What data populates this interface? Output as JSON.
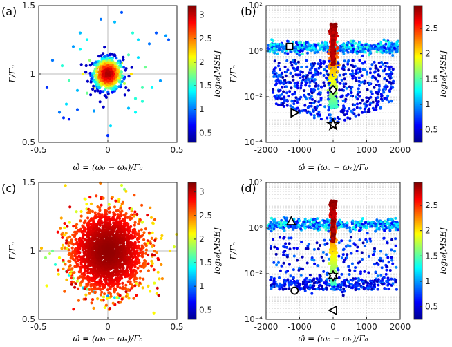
{
  "colors": {
    "axis": "#262626",
    "grid": "#c8c8c8",
    "marker_stroke": "#000000",
    "marker_fill": "#ffffff"
  },
  "chart_data": [
    {
      "panel": "(a)",
      "type": "scatter",
      "yscale": "linear",
      "xlabel": "ω̂ = (ω₀ − ωₙ)/Γ₀",
      "ylabel": "Γ/Γ₀",
      "xlim": [
        -0.5,
        0.5
      ],
      "ylim": [
        0.5,
        1.5
      ],
      "xticks": [
        -0.5,
        0,
        0.5
      ],
      "xtick_labels": [
        "-0.5",
        "0",
        "0.5"
      ],
      "yticks": [
        0.5,
        1,
        1.5
      ],
      "ytick_labels": [
        "0.5",
        "1",
        "1.5"
      ],
      "refline_x": 0,
      "refline_y": 1,
      "colorbar": {
        "label": "log₁₀[MSE]",
        "range": [
          0.3,
          3.2
        ],
        "ticks": [
          0.5,
          1,
          1.5,
          2,
          2.5,
          3
        ],
        "tick_labels": [
          "0.5",
          "1",
          "1.5",
          "2",
          "2.5",
          "3"
        ]
      },
      "points": [
        [
          0,
          1.0,
          3.1
        ],
        [
          0.02,
          1.02,
          3.0
        ],
        [
          -0.03,
          0.98,
          2.9
        ],
        [
          0.05,
          1.05,
          2.6
        ],
        [
          -0.06,
          0.94,
          2.5
        ],
        [
          0.08,
          0.97,
          2.3
        ],
        [
          -0.08,
          1.04,
          2.4
        ],
        [
          0.1,
          1.08,
          2.0
        ],
        [
          -0.1,
          0.9,
          2.1
        ],
        [
          0.12,
          0.93,
          1.9
        ],
        [
          -0.13,
          1.1,
          1.8
        ],
        [
          0.15,
          1.14,
          1.6
        ],
        [
          -0.15,
          0.86,
          1.7
        ],
        [
          0.17,
          1.0,
          2.2
        ],
        [
          -0.18,
          1.0,
          2.1
        ],
        [
          0.2,
          0.82,
          1.5
        ],
        [
          -0.2,
          1.18,
          1.4
        ],
        [
          0.22,
          1.12,
          1.3
        ],
        [
          -0.22,
          0.88,
          1.2
        ],
        [
          0.25,
          0.8,
          1.5
        ],
        [
          -0.25,
          1.2,
          1.1
        ],
        [
          0.27,
          1.05,
          1.7
        ],
        [
          -0.28,
          0.95,
          1.6
        ],
        [
          0.3,
          1.22,
          1.0
        ],
        [
          -0.3,
          0.78,
          1.3
        ],
        [
          0.32,
          0.9,
          1.4
        ],
        [
          -0.33,
          1.06,
          1.5
        ],
        [
          0.35,
          1.3,
          0.9
        ],
        [
          -0.35,
          0.72,
          1.0
        ],
        [
          0.38,
          0.95,
          1.1
        ],
        [
          -0.4,
          1.1,
          1.0
        ],
        [
          0.42,
          1.28,
          1.1
        ],
        [
          0.44,
          1.25,
          0.9
        ],
        [
          -0.44,
          0.9,
          0.8
        ],
        [
          -0.32,
          0.68,
          0.8
        ],
        [
          -0.28,
          0.67,
          0.7
        ],
        [
          -0.22,
          0.74,
          0.9
        ],
        [
          -0.1,
          0.73,
          1.1
        ],
        [
          0.05,
          1.38,
          1.2
        ],
        [
          -0.05,
          1.4,
          1.0
        ],
        [
          0.1,
          1.45,
          0.9
        ],
        [
          0.0,
          0.55,
          0.8
        ],
        [
          0.02,
          0.62,
          1.3
        ],
        [
          0.15,
          0.75,
          1.2
        ],
        [
          0.2,
          0.72,
          1.4
        ],
        [
          0.25,
          0.9,
          1.6
        ],
        [
          0.22,
          1.25,
          1.3
        ],
        [
          -0.15,
          1.25,
          1.4
        ],
        [
          -0.2,
          1.3,
          1.2
        ],
        [
          0.18,
          1.3,
          1.5
        ]
      ]
    },
    {
      "panel": "(b)",
      "type": "scatter",
      "yscale": "log",
      "xlabel": "ω̂ = (ω₀ − ωₙ)/Γ₀",
      "ylabel": "Γ/Γ₀",
      "xlim": [
        -2000,
        2000
      ],
      "ylim": [
        0.0001,
        100
      ],
      "xticks": [
        -2000,
        -1000,
        0,
        1000,
        2000
      ],
      "xtick_labels": [
        "-2000",
        "-1000",
        "0",
        "1000",
        "2000"
      ],
      "yticks": [
        0.0001,
        0.01,
        1,
        100
      ],
      "ytick_labels": [
        "10⁻⁴",
        "10⁻²",
        "10⁰",
        "10²"
      ],
      "grid": true,
      "colorbar": {
        "label": "log₁₀[MSE]",
        "range": [
          0.25,
          2.95
        ],
        "ticks": [
          0.5,
          1,
          1.5,
          2,
          2.5
        ],
        "tick_labels": [
          "0.5",
          "1",
          "1.5",
          "2",
          "2.5"
        ]
      },
      "markers": [
        {
          "shape": "square",
          "x": -1300,
          "y": 1.6
        },
        {
          "shape": "diamond",
          "x": 0,
          "y": 0.02
        },
        {
          "shape": "triangle-right",
          "x": -1150,
          "y": 0.002
        },
        {
          "shape": "star",
          "x": 0,
          "y": 0.0006
        }
      ]
    },
    {
      "panel": "(c)",
      "type": "scatter",
      "yscale": "linear",
      "xlabel": "ω̂ = (ω₀ − ωₙ)/Γ₀",
      "ylabel": "Γ/Γ₀",
      "xlim": [
        -0.5,
        0.5
      ],
      "ylim": [
        0.5,
        1.5
      ],
      "xticks": [
        -0.5,
        0,
        0.5
      ],
      "xtick_labels": [
        "-0.5",
        "0",
        "0.5"
      ],
      "yticks": [
        0.5,
        1,
        1.5
      ],
      "ytick_labels": [
        "0.5",
        "1",
        "1.5"
      ],
      "refline_x": 0,
      "refline_y": 1,
      "colorbar": {
        "label": "log₁₀[MSE]",
        "range": [
          0.3,
          3.2
        ],
        "ticks": [
          0.5,
          1,
          1.5,
          2,
          2.5,
          3
        ],
        "tick_labels": [
          "0.5",
          "1",
          "1.5",
          "2",
          "2.5",
          "3"
        ]
      },
      "points": [
        [
          -0.45,
          0.95,
          1.8
        ],
        [
          -0.4,
          1.0,
          1.7
        ],
        [
          -0.38,
          0.9,
          1.5
        ],
        [
          -0.42,
          0.98,
          1.9
        ],
        [
          -0.3,
          0.85,
          1.6
        ],
        [
          -0.28,
          0.82,
          1.4
        ],
        [
          -0.25,
          0.8,
          1.8
        ],
        [
          -0.22,
          0.78,
          2.0
        ],
        [
          -0.2,
          0.75,
          1.5
        ],
        [
          -0.18,
          0.73,
          1.3
        ],
        [
          -0.15,
          0.72,
          1.7
        ],
        [
          -0.1,
          0.7,
          1.2
        ],
        [
          -0.05,
          0.68,
          1.4
        ],
        [
          0.0,
          0.67,
          1.1
        ],
        [
          0.05,
          0.66,
          1.3
        ],
        [
          0.08,
          0.66,
          1.6
        ],
        [
          -0.32,
          0.92,
          1.9
        ],
        [
          -0.35,
          0.95,
          2.1
        ],
        [
          0.1,
          1.48,
          2.0
        ],
        [
          0.12,
          1.45,
          1.8
        ],
        [
          0.45,
          1.0,
          2.2
        ],
        [
          0.48,
          1.03,
          2.0
        ],
        [
          -0.48,
          1.02,
          2.3
        ]
      ]
    },
    {
      "panel": "(d)",
      "type": "scatter",
      "yscale": "log",
      "xlabel": "ω̂ = (ω₀ − ωₙ)/Γ₀",
      "ylabel": "Γ/Γ₀",
      "xlim": [
        -2000,
        2000
      ],
      "ylim": [
        0.0001,
        100
      ],
      "xticks": [
        -2000,
        -1000,
        0,
        1000,
        2000
      ],
      "xtick_labels": [
        "-2000",
        "-1000",
        "0",
        "1000",
        "2000"
      ],
      "yticks": [
        0.0001,
        0.01,
        1,
        100
      ],
      "ytick_labels": [
        "10⁻⁴",
        "10⁻²",
        "10⁰",
        "10²"
      ],
      "grid": true,
      "colorbar": {
        "label": "log₁₀[MSE]",
        "range": [
          0.25,
          2.95
        ],
        "ticks": [
          0.5,
          1,
          1.5,
          2,
          2.5
        ],
        "tick_labels": [
          "0.5",
          "1",
          "1.5",
          "2",
          "2.5"
        ]
      },
      "markers": [
        {
          "shape": "triangle-up",
          "x": -1250,
          "y": 2.0
        },
        {
          "shape": "hexagram",
          "x": 0,
          "y": 0.008
        },
        {
          "shape": "circle",
          "x": -1150,
          "y": 0.0018
        },
        {
          "shape": "triangle-left",
          "x": 0,
          "y": 0.00025
        }
      ]
    }
  ]
}
